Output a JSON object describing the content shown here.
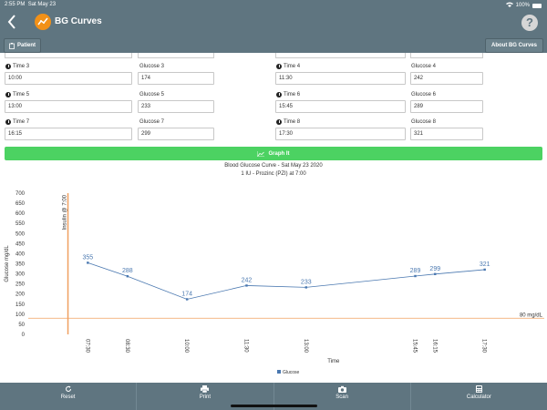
{
  "status_bar": {
    "time": "2:55 PM",
    "date": "Sat May 23",
    "battery": "100%"
  },
  "header": {
    "title": "BG Curves",
    "help": "?"
  },
  "subnav": {
    "patient_label": "Patient",
    "about_label": "About BG Curves"
  },
  "readings": [
    {
      "time_label": "Time 3",
      "time": "10:00",
      "glucose_label": "Glucose 3",
      "glucose": "174"
    },
    {
      "time_label": "Time 4",
      "time": "11:30",
      "glucose_label": "Glucose 4",
      "glucose": "242"
    },
    {
      "time_label": "Time 5",
      "time": "13:00",
      "glucose_label": "Glucose 5",
      "glucose": "233"
    },
    {
      "time_label": "Time 6",
      "time": "15:45",
      "glucose_label": "Glucose 6",
      "glucose": "289"
    },
    {
      "time_label": "Time 7",
      "time": "16:15",
      "glucose_label": "Glucose 7",
      "glucose": "299"
    },
    {
      "time_label": "Time 8",
      "time": "17:30",
      "glucose_label": "Glucose 8",
      "glucose": "321"
    }
  ],
  "graph_button_label": "Graph It",
  "chart_title": "Blood Glucose Curve - Sat May 23 2020",
  "chart_subtitle": "1 IU - Prozinc (PZI) at 7:00",
  "chart_data": {
    "type": "line",
    "xlabel": "Time",
    "ylabel": "Glucose mg/dL",
    "ylim": [
      0,
      700
    ],
    "yticks": [
      0,
      50,
      100,
      150,
      200,
      250,
      300,
      350,
      400,
      450,
      500,
      550,
      600,
      650,
      700
    ],
    "x_ticks": [
      "07:30",
      "08:30",
      "10:00",
      "11:30",
      "13:00",
      "15:45",
      "16:15",
      "17:30"
    ],
    "series": [
      {
        "name": "Glucose",
        "color": "#4a78b0",
        "x": [
          "07:30",
          "08:30",
          "10:00",
          "11:30",
          "13:00",
          "15:45",
          "16:15",
          "17:30"
        ],
        "values": [
          355,
          288,
          174,
          242,
          233,
          289,
          299,
          321
        ]
      }
    ],
    "annotations": [
      {
        "type": "vertical_line",
        "x": "07:00",
        "label": "Insulin @ 7:00",
        "color": "#f0a060"
      },
      {
        "type": "horizontal_line",
        "y": 80,
        "label": "80 mg/dL",
        "color": "#f0a060"
      }
    ],
    "grid": false,
    "legend": "bottom-center"
  },
  "bottom_tabs": [
    {
      "label": "Reset",
      "icon": "refresh-icon"
    },
    {
      "label": "Print",
      "icon": "printer-icon"
    },
    {
      "label": "Scan",
      "icon": "camera-icon"
    },
    {
      "label": "Calculator",
      "icon": "calculator-icon"
    }
  ]
}
